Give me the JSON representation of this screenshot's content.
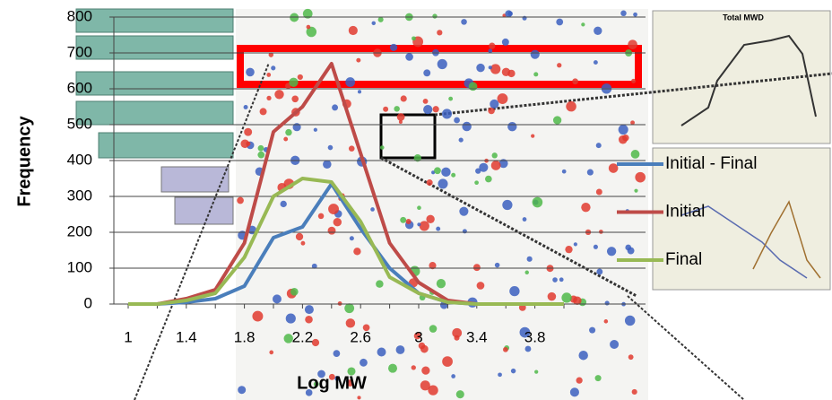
{
  "chart_data": {
    "type": "line",
    "x_label": "Log MW",
    "y_label": "Frequency",
    "annotations": [
      "Total MWD"
    ],
    "categories": [
      "1",
      null,
      "1.4",
      null,
      "1.8",
      null,
      "2.2",
      null,
      "2.6",
      null,
      "3",
      null,
      "3.4",
      null,
      "3.8",
      null
    ],
    "series": [
      {
        "name": "Initial - Final",
        "color": "#4a7ebb",
        "values": [
          0,
          0,
          5,
          15,
          50,
          185,
          215,
          335,
          210,
          100,
          30,
          5,
          0,
          0,
          0,
          0
        ]
      },
      {
        "name": "Initial",
        "color": "#be4b48",
        "values": [
          0,
          0,
          15,
          40,
          170,
          480,
          550,
          670,
          420,
          170,
          60,
          10,
          0,
          0,
          0,
          0
        ]
      },
      {
        "name": "Final",
        "color": "#98b954",
        "values": [
          0,
          0,
          10,
          30,
          130,
          300,
          350,
          340,
          230,
          75,
          30,
          5,
          0,
          0,
          0,
          0
        ]
      }
    ],
    "ylim": [
      0,
      800
    ],
    "yticks": [
      0,
      100,
      200,
      300,
      400,
      500,
      600,
      700,
      800
    ],
    "grid": true
  }
}
